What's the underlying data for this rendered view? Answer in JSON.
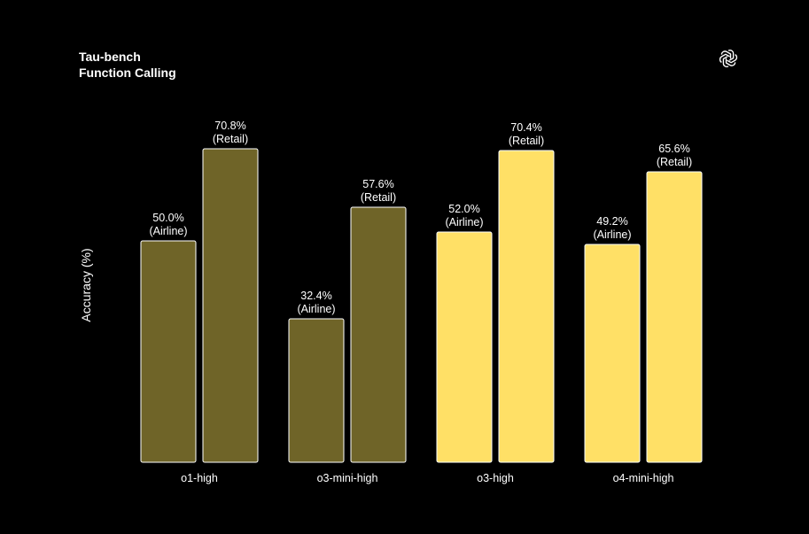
{
  "header": {
    "title_line1": "Tau-bench",
    "title_line2": "Function Calling"
  },
  "logo_icon": "openai-logo-icon",
  "chart_data": {
    "type": "bar",
    "ylabel": "Accuracy (%)",
    "ylim": [
      0,
      80
    ],
    "grid": false,
    "categories": [
      "o1-high",
      "o3-mini-high",
      "o3-high",
      "o4-mini-high"
    ],
    "series": [
      {
        "name": "Airline",
        "values": [
          50.0,
          32.4,
          52.0,
          49.2
        ],
        "value_labels": [
          "50.0%",
          "32.4%",
          "52.0%",
          "49.2%"
        ],
        "sub_label": "(Airline)"
      },
      {
        "name": "Retail",
        "values": [
          70.8,
          57.6,
          70.4,
          65.6
        ],
        "value_labels": [
          "70.8%",
          "57.6%",
          "70.4%",
          "65.6%"
        ],
        "sub_label": "(Retail)"
      }
    ],
    "colors": {
      "older_models": "#6f6428",
      "newer_models": "#ffe066",
      "bar_outline": "#ffffff",
      "text": "#ffffff",
      "background": "#000000"
    },
    "highlighted_categories": [
      "o3-high",
      "o4-mini-high"
    ]
  }
}
